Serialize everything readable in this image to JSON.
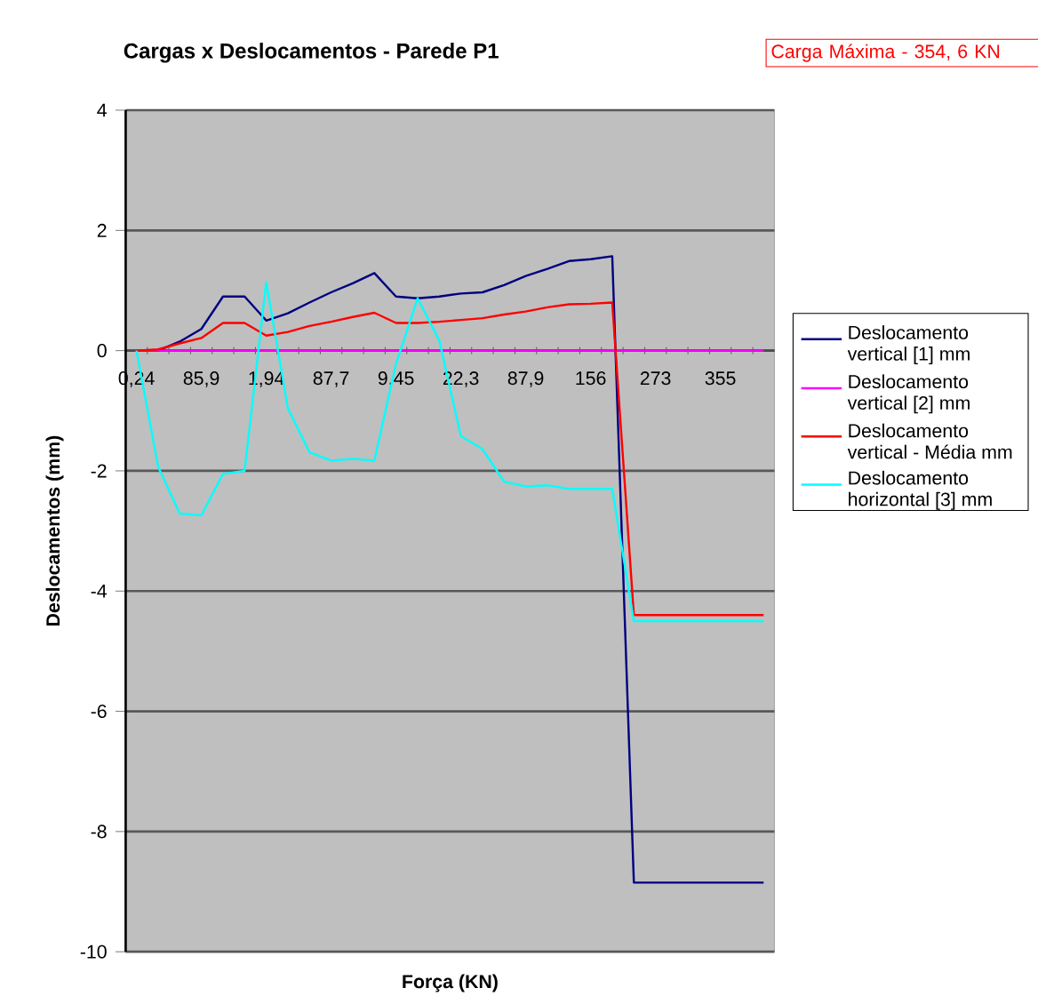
{
  "chart_data": {
    "type": "line",
    "title": "Cargas x Deslocamentos - Parede P1",
    "xlabel": "Força (KN)",
    "ylabel": "Deslocamentos (mm)",
    "annotations": [
      "Carga Máxima - 354, 6 KN"
    ],
    "categories": [
      "0,24",
      null,
      null,
      "85,9",
      null,
      null,
      "1,94",
      null,
      null,
      "87,7",
      null,
      null,
      "9,45",
      null,
      null,
      "22,3",
      null,
      null,
      "87,9",
      null,
      null,
      "156",
      null,
      null,
      "273",
      null,
      null,
      "355",
      null,
      null
    ],
    "ylim": [
      -10,
      4
    ],
    "yticks": [
      -10,
      -8,
      -6,
      -4,
      -2,
      0,
      2,
      4
    ],
    "grid": "y",
    "legend": "right",
    "series": [
      {
        "name": "Deslocamento vertical [1] mm",
        "color": "#000080",
        "values": [
          0,
          0,
          0.15,
          0.36,
          0.9,
          0.9,
          0.5,
          0.62,
          0.8,
          0.97,
          1.12,
          1.29,
          0.9,
          0.87,
          0.9,
          0.95,
          0.97,
          1.09,
          1.24,
          1.36,
          1.49,
          1.52,
          1.57,
          -8.85,
          -8.85,
          -8.85,
          -8.85,
          -8.85,
          -8.85,
          -8.85
        ]
      },
      {
        "name": "Deslocamento vertical [2] mm",
        "color": "#ff00ff",
        "values": [
          0,
          0,
          0,
          0,
          0,
          0,
          0,
          0,
          0,
          0,
          0,
          0,
          0,
          0,
          0,
          0,
          0,
          0,
          0,
          0,
          0,
          0,
          0,
          0,
          0,
          0,
          0,
          0,
          0,
          0
        ]
      },
      {
        "name": "Deslocamento vertical - Média mm",
        "color": "#ff0000",
        "values": [
          0,
          0.02,
          0.12,
          0.21,
          0.46,
          0.46,
          0.25,
          0.31,
          0.41,
          0.48,
          0.56,
          0.63,
          0.46,
          0.46,
          0.48,
          0.51,
          0.54,
          0.6,
          0.65,
          0.72,
          0.77,
          0.78,
          0.8,
          -4.4,
          -4.4,
          -4.4,
          -4.4,
          -4.4,
          -4.4,
          -4.4
        ]
      },
      {
        "name": "Deslocamento horizontal [3] mm",
        "color": "#00ffff",
        "values": [
          0,
          -1.93,
          -2.71,
          -2.74,
          -2.05,
          -2.0,
          1.14,
          -0.96,
          -1.69,
          -1.83,
          -1.8,
          -1.83,
          -0.22,
          0.87,
          0.17,
          -1.42,
          -1.64,
          -2.18,
          -2.26,
          -2.24,
          -2.3,
          -2.3,
          -2.3,
          -4.5,
          -4.5,
          -4.5,
          -4.5,
          -4.5,
          -4.5,
          -4.5
        ]
      }
    ]
  }
}
